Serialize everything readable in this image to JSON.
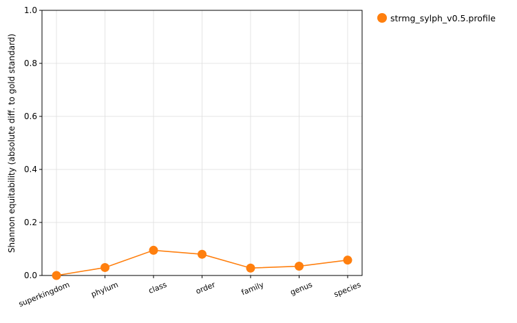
{
  "chart_data": {
    "type": "line",
    "title": "",
    "xlabel": "",
    "ylabel": "Shannon equitability (absolute diff. to gold standard)",
    "categories": [
      "superkingdom",
      "phylum",
      "class",
      "order",
      "family",
      "genus",
      "species"
    ],
    "ylim": [
      0,
      1.0
    ],
    "yticks": [
      "0.0",
      "0.2",
      "0.4",
      "0.6",
      "0.8",
      "1.0"
    ],
    "grid": true,
    "legend_position": "outside top-right",
    "series": [
      {
        "name": "strmg_sylph_v0.5.profile",
        "color": "#ff7f0e",
        "values": [
          0.0,
          0.03,
          0.095,
          0.08,
          0.028,
          0.035,
          0.058
        ]
      }
    ]
  }
}
